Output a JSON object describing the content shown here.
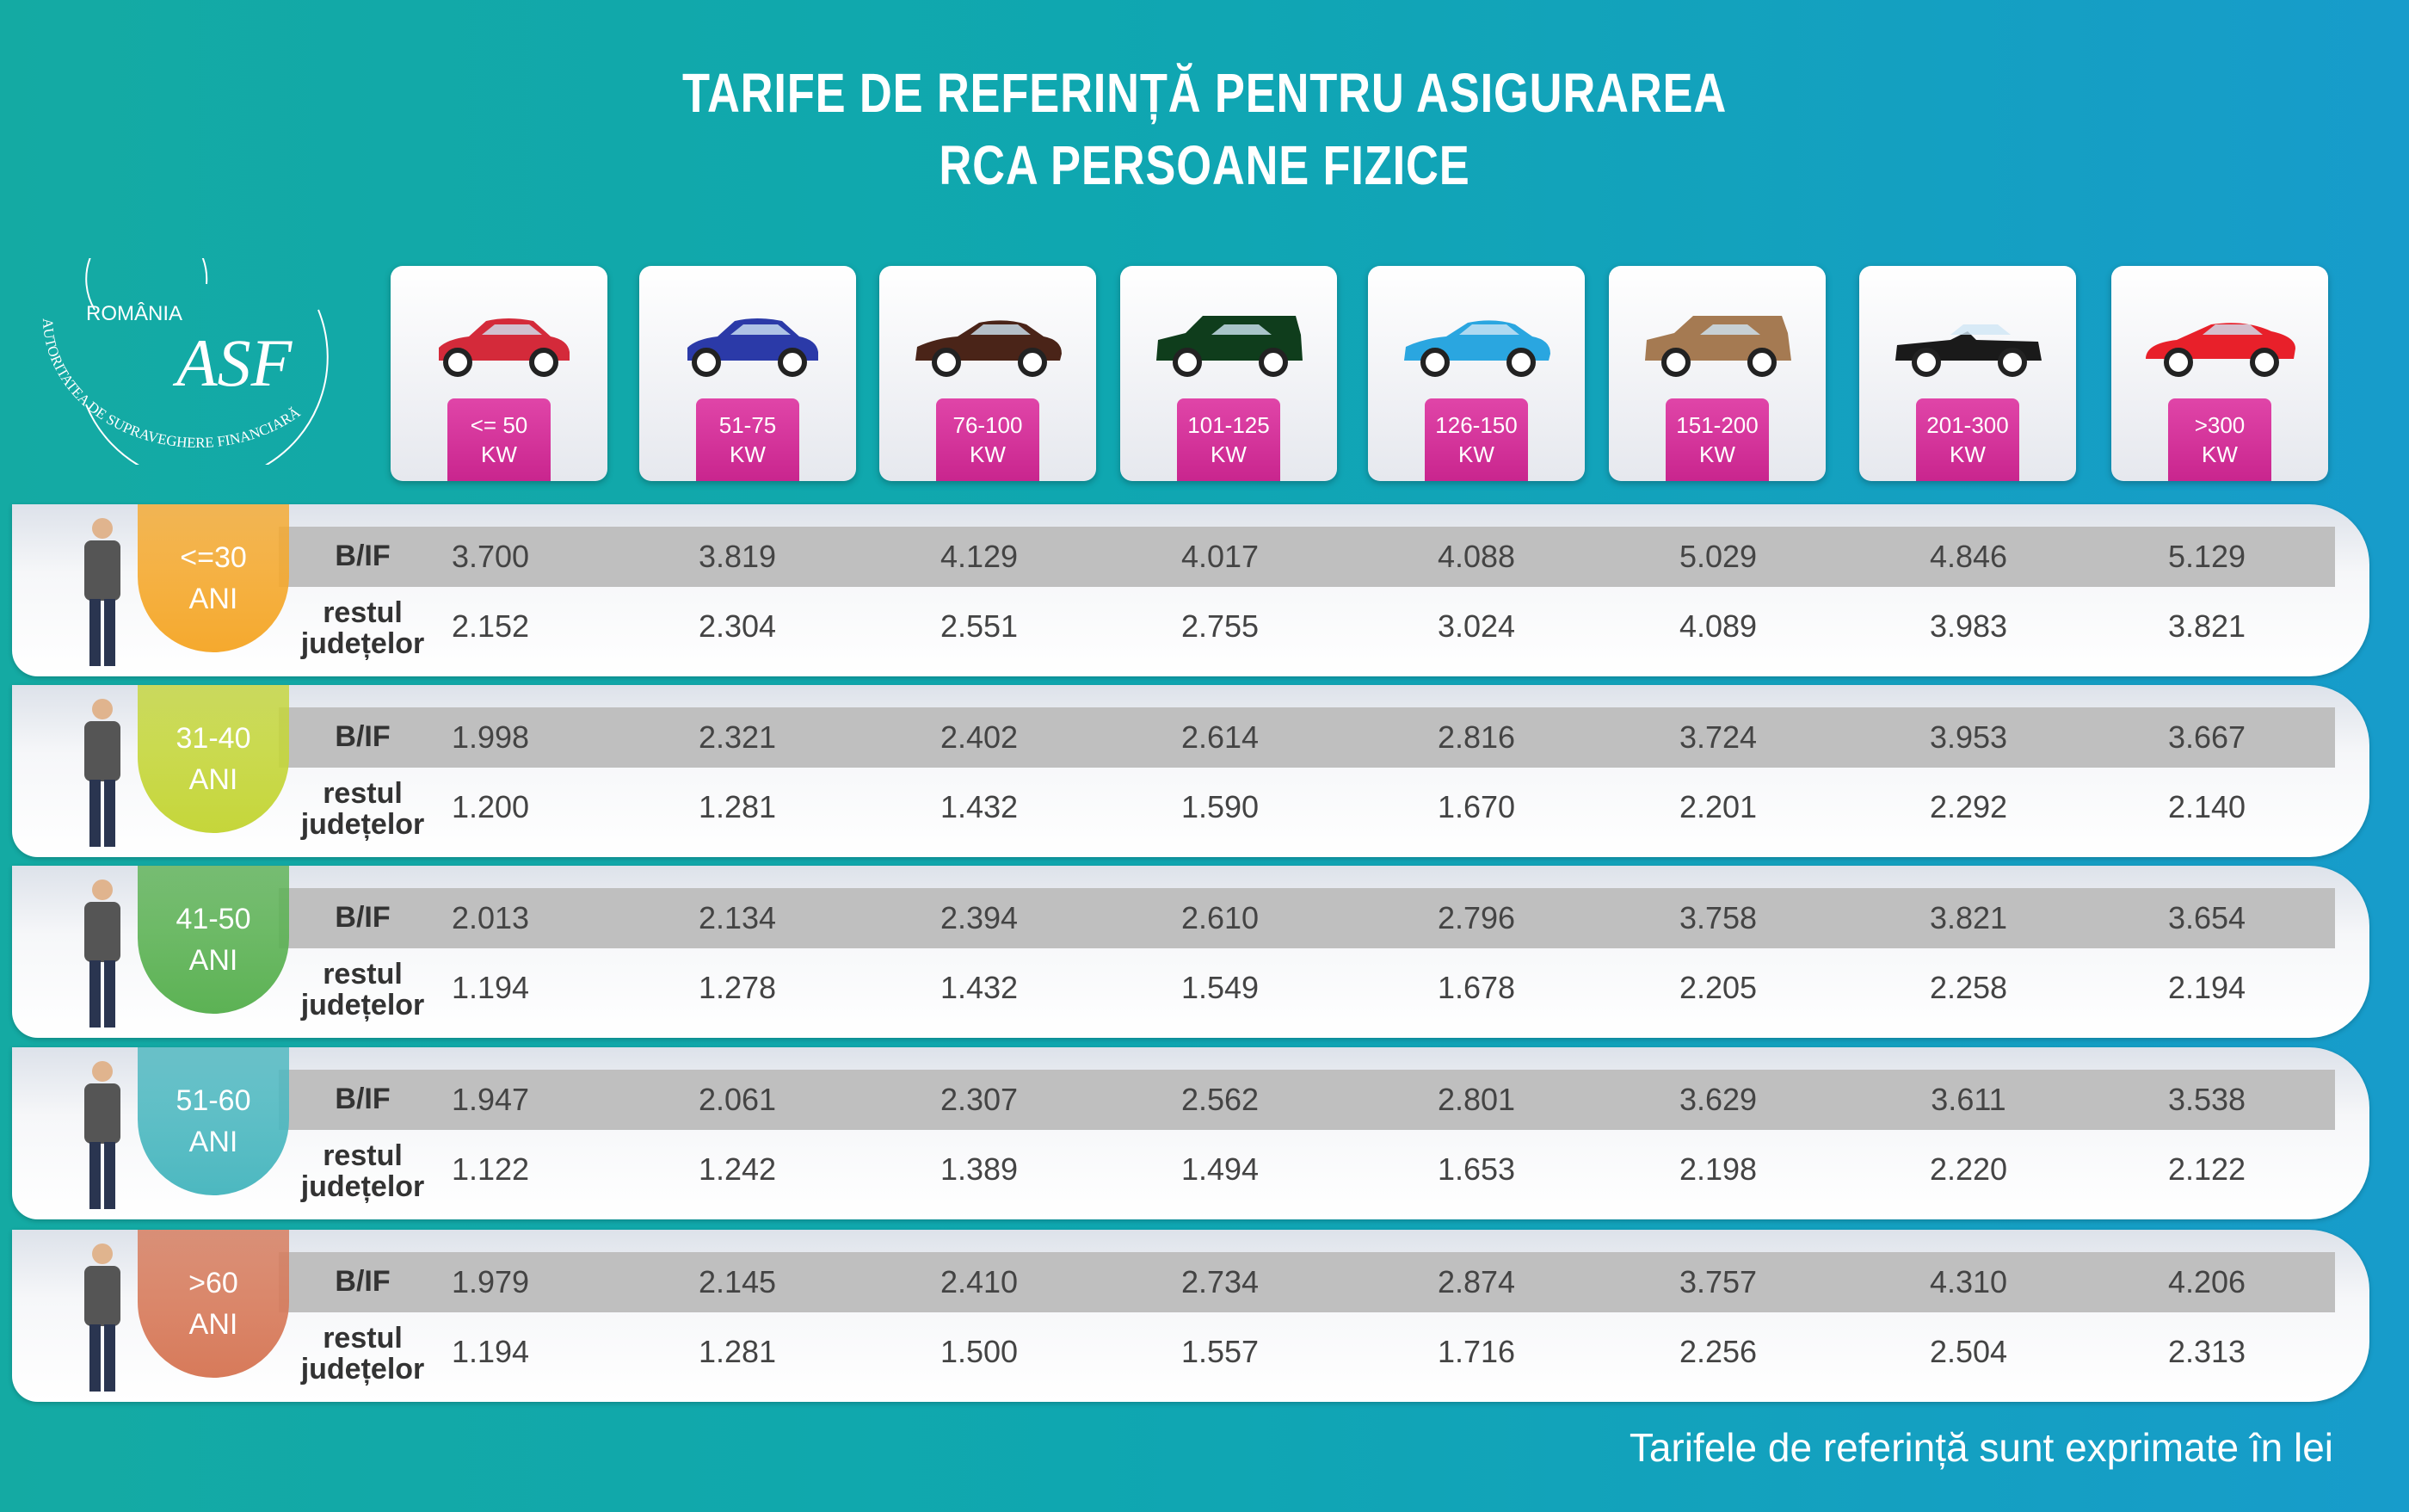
{
  "title": {
    "line1": "TARIFE DE REFERINȚĂ PENTRU ASIGURAREA",
    "line2": "RCA PERSOANE FIZICE"
  },
  "logo": {
    "top": "ROMÂNIA",
    "mark": "ASF",
    "ring": "AUTORITATEA DE SUPRAVEGHERE FINANCIARĂ"
  },
  "colors": {
    "kw_badge": "#d9369f",
    "band": "#bfbfbf"
  },
  "columns": [
    {
      "kw": "<= 50",
      "unit": "KW",
      "car_color": "#d42a3a",
      "icon": "hatchback-car-icon"
    },
    {
      "kw": "51-75",
      "unit": "KW",
      "car_color": "#2b3aa8",
      "icon": "hatchback-car-icon"
    },
    {
      "kw": "76-100",
      "unit": "KW",
      "car_color": "#4a2418",
      "icon": "sedan-car-icon"
    },
    {
      "kw": "101-125",
      "unit": "KW",
      "car_color": "#0f3d1c",
      "icon": "minivan-car-icon"
    },
    {
      "kw": "126-150",
      "unit": "KW",
      "car_color": "#2aa6e0",
      "icon": "sedan-car-icon"
    },
    {
      "kw": "151-200",
      "unit": "KW",
      "car_color": "#a57a52",
      "icon": "suv-car-icon"
    },
    {
      "kw": "201-300",
      "unit": "KW",
      "car_color": "#1a1a1a",
      "icon": "convertible-car-icon"
    },
    {
      "kw": ">300",
      "unit": "KW",
      "car_color": "#e8202a",
      "icon": "sports-car-icon"
    }
  ],
  "row_labels": {
    "bif": "B/IF",
    "rest1": "restul",
    "rest2": "județelor"
  },
  "rows": [
    {
      "age": "<=30",
      "unit": "ANI",
      "color": "#f5a92e",
      "bif": [
        "3.700",
        "3.819",
        "4.129",
        "4.017",
        "4.088",
        "5.029",
        "4.846",
        "5.129"
      ],
      "rest": [
        "2.152",
        "2.304",
        "2.551",
        "2.755",
        "3.024",
        "4.089",
        "3.983",
        "3.821"
      ]
    },
    {
      "age": "31-40",
      "unit": "ANI",
      "color": "#c5d63a",
      "bif": [
        "1.998",
        "2.321",
        "2.402",
        "2.614",
        "2.816",
        "3.724",
        "3.953",
        "3.667"
      ],
      "rest": [
        "1.200",
        "1.281",
        "1.432",
        "1.590",
        "1.670",
        "2.201",
        "2.292",
        "2.140"
      ]
    },
    {
      "age": "41-50",
      "unit": "ANI",
      "color": "#5cb254",
      "bif": [
        "2.013",
        "2.134",
        "2.394",
        "2.610",
        "2.796",
        "3.758",
        "3.821",
        "3.654"
      ],
      "rest": [
        "1.194",
        "1.278",
        "1.432",
        "1.549",
        "1.678",
        "2.205",
        "2.258",
        "2.194"
      ]
    },
    {
      "age": "51-60",
      "unit": "ANI",
      "color": "#4cb8c0",
      "bif": [
        "1.947",
        "2.061",
        "2.307",
        "2.562",
        "2.801",
        "3.629",
        "3.611",
        "3.538"
      ],
      "rest": [
        "1.122",
        "1.242",
        "1.389",
        "1.494",
        "1.653",
        "2.198",
        "2.220",
        "2.122"
      ]
    },
    {
      "age": ">60",
      "unit": "ANI",
      "color": "#d77a5a",
      "bif": [
        "1.979",
        "2.145",
        "2.410",
        "2.734",
        "2.874",
        "3.757",
        "4.310",
        "4.206"
      ],
      "rest": [
        "1.194",
        "1.281",
        "1.500",
        "1.557",
        "1.716",
        "2.256",
        "2.504",
        "2.313"
      ]
    }
  ],
  "footer": "Tarifele de referință sunt exprimate în lei"
}
